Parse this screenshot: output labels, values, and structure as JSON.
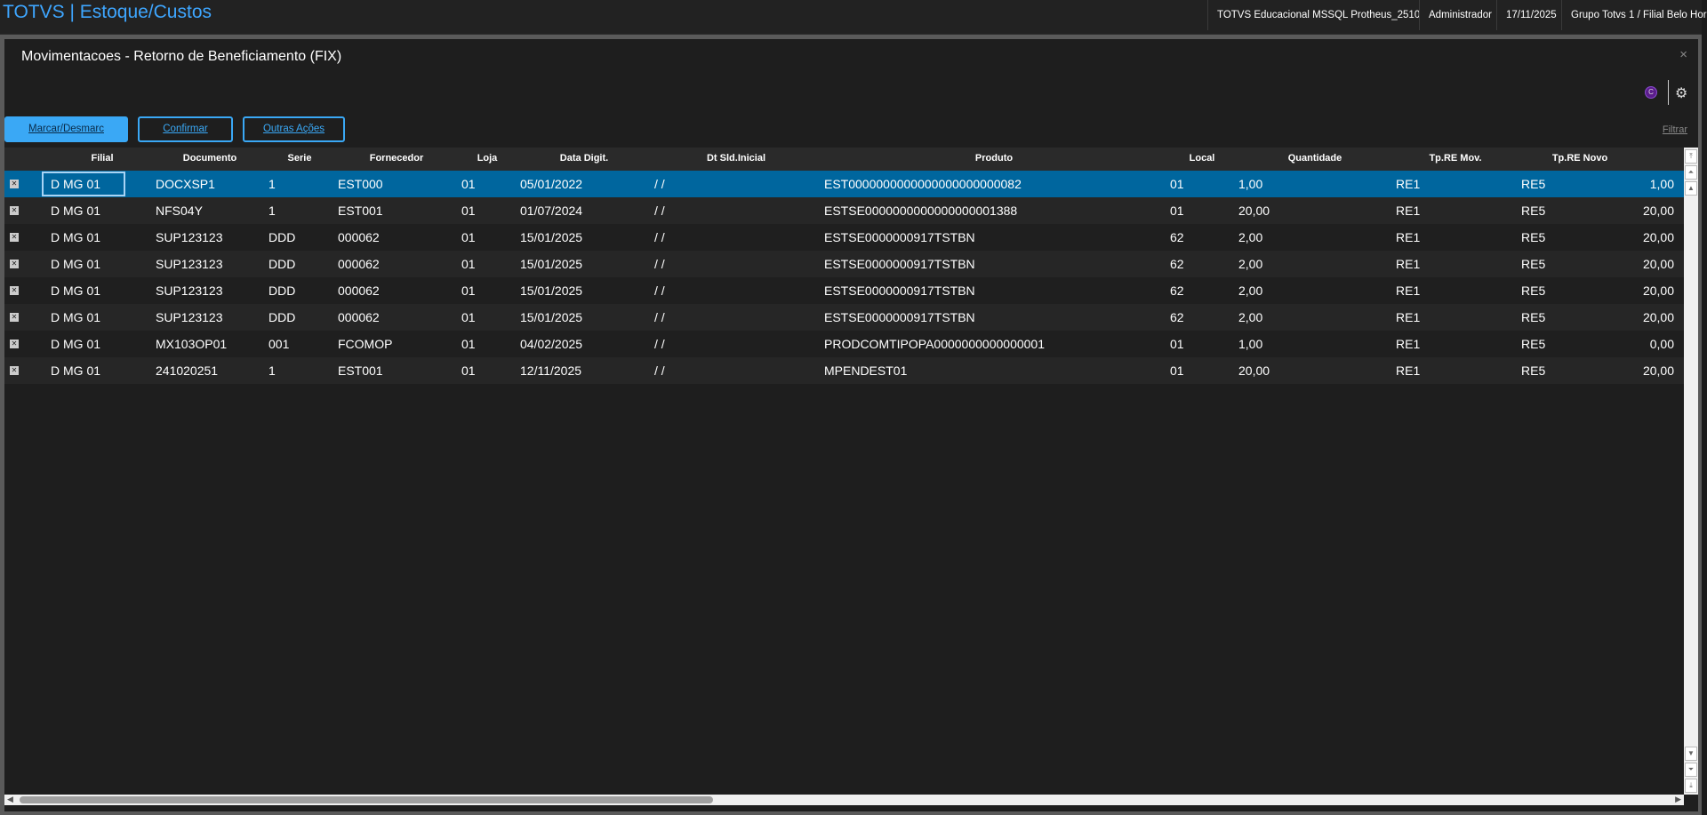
{
  "app": {
    "title": "TOTVS | Estoque/Custos",
    "environment": "TOTVS Educacional MSSQL Protheus_2510",
    "user": "Administrador",
    "date": "17/11/2025",
    "branch": "Grupo Totvs 1 / Filial Belo Hor"
  },
  "window": {
    "title": "Movimentacoes - Retorno de Beneficiamento (FIX)",
    "close": "×",
    "c_icon": "C",
    "gear_icon": "⚙"
  },
  "toolbar": {
    "mark": "Marcar/Desmarc",
    "confirm": "Confirmar",
    "more": "Outras Ações",
    "filter": "Filtrar"
  },
  "colors": {
    "accent": "#3aa8f5",
    "selected_row": "#00669e"
  },
  "table": {
    "columns": [
      "Filial",
      "Documento",
      "Serie",
      "Fornecedor",
      "Loja",
      "Data Digit.",
      "Dt Sld.Inicial",
      "Produto",
      "Local",
      "Quantidade",
      "Tp.RE Mov.",
      "Tp.RE Novo",
      ""
    ],
    "rows": [
      [
        "D MG 01",
        "DOCXSP1",
        "1",
        "EST000",
        "01",
        "05/01/2022",
        "/ /",
        "EST0000000000000000000000082",
        "01",
        "1,00",
        "RE1",
        "RE5",
        "1,00"
      ],
      [
        "D MG 01",
        "NFS04Y",
        "1",
        "EST001",
        "01",
        "01/07/2024",
        "/ /",
        "ESTSE0000000000000000001388",
        "01",
        "20,00",
        "RE1",
        "RE5",
        "20,00"
      ],
      [
        "D MG 01",
        "SUP123123",
        "DDD",
        "000062",
        "01",
        "15/01/2025",
        "/ /",
        "ESTSE0000000917TSTBN",
        "62",
        "2,00",
        "RE1",
        "RE5",
        "20,00"
      ],
      [
        "D MG 01",
        "SUP123123",
        "DDD",
        "000062",
        "01",
        "15/01/2025",
        "/ /",
        "ESTSE0000000917TSTBN",
        "62",
        "2,00",
        "RE1",
        "RE5",
        "20,00"
      ],
      [
        "D MG 01",
        "SUP123123",
        "DDD",
        "000062",
        "01",
        "15/01/2025",
        "/ /",
        "ESTSE0000000917TSTBN",
        "62",
        "2,00",
        "RE1",
        "RE5",
        "20,00"
      ],
      [
        "D MG 01",
        "SUP123123",
        "DDD",
        "000062",
        "01",
        "15/01/2025",
        "/ /",
        "ESTSE0000000917TSTBN",
        "62",
        "2,00",
        "RE1",
        "RE5",
        "20,00"
      ],
      [
        "D MG 01",
        "MX103OP01",
        "001",
        "FCOMOP",
        "01",
        "04/02/2025",
        "/ /",
        "PRODCOMTIPOPA0000000000000001",
        "01",
        "1,00",
        "RE1",
        "RE5",
        "0,00"
      ],
      [
        "D MG 01",
        "241020251",
        "1",
        "EST001",
        "01",
        "12/11/2025",
        "/ /",
        "MPENDEST01",
        "01",
        "20,00",
        "RE1",
        "RE5",
        "20,00"
      ]
    ],
    "selected_row": 0
  }
}
